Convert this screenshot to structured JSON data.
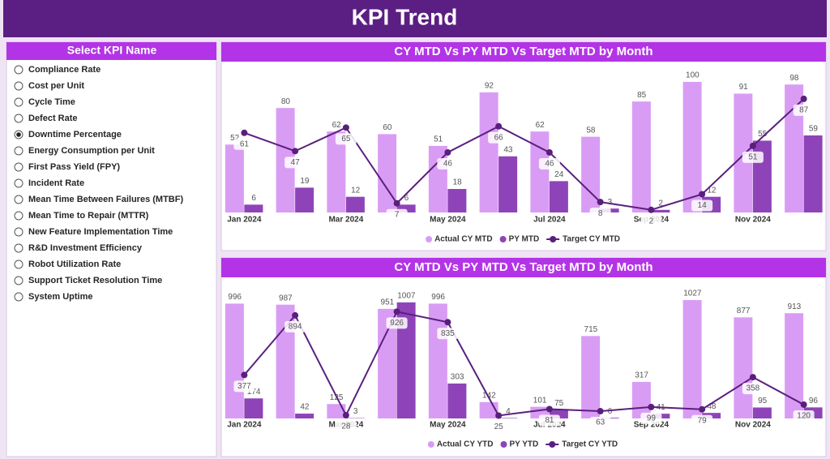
{
  "header": {
    "title": "KPI Trend"
  },
  "slicer": {
    "title": "Select KPI Name",
    "options": [
      "Compliance Rate",
      "Cost per Unit",
      "Cycle Time",
      "Defect Rate",
      "Downtime Percentage",
      "Energy Consumption per Unit",
      "First Pass Yield (FPY)",
      "Incident Rate",
      "Mean Time Between Failures (MTBF)",
      "Mean Time to Repair (MTTR)",
      "New Feature Implementation Time",
      "R&D Investment Efficiency",
      "Robot Utilization Rate",
      "Support Ticket Resolution Time",
      "System Uptime"
    ],
    "selected": 4
  },
  "chart_data": [
    {
      "type": "bar",
      "title": "CY MTD Vs PY MTD Vs Target MTD by Month",
      "categories": [
        "Jan 2024",
        null,
        "Mar 2024",
        null,
        "May 2024",
        null,
        "Jul 2024",
        null,
        "Sep 2024",
        null,
        "Nov 2024",
        null
      ],
      "series": [
        {
          "name": "Actual CY MTD",
          "color": "#d99cf4",
          "values": [
            52,
            80,
            62,
            60,
            51,
            92,
            62,
            58,
            85,
            100,
            91,
            98
          ]
        },
        {
          "name": "PY MTD",
          "color": "#8e44b8",
          "values": [
            6,
            19,
            12,
            6,
            18,
            43,
            24,
            3,
            2,
            12,
            55,
            59
          ]
        },
        {
          "name": "Target CY MTD",
          "color": "#5a1f7d",
          "type": "line",
          "values": [
            61,
            47,
            65,
            7,
            46,
            66,
            46,
            8,
            2,
            14,
            51,
            87
          ]
        }
      ]
    },
    {
      "type": "bar",
      "title": "CY MTD Vs PY MTD Vs Target MTD by Month",
      "categories": [
        "Jan 2024",
        null,
        "Mar 2024",
        null,
        "May 2024",
        null,
        "Jul 2024",
        null,
        "Sep 2024",
        null,
        "Nov 2024",
        null
      ],
      "series": [
        {
          "name": "Actual CY YTD",
          "color": "#d99cf4",
          "values": [
            996,
            987,
            125,
            951,
            996,
            142,
            101,
            715,
            317,
            1027,
            877,
            913
          ]
        },
        {
          "name": "PY YTD",
          "color": "#8e44b8",
          "values": [
            174,
            42,
            3,
            1007,
            303,
            4,
            75,
            6,
            41,
            48,
            95,
            96
          ]
        },
        {
          "name": "Target CY YTD",
          "color": "#5a1f7d",
          "type": "line",
          "values": [
            377,
            894,
            28,
            926,
            835,
            25,
            81,
            63,
            99,
            79,
            358,
            120
          ]
        }
      ]
    }
  ]
}
